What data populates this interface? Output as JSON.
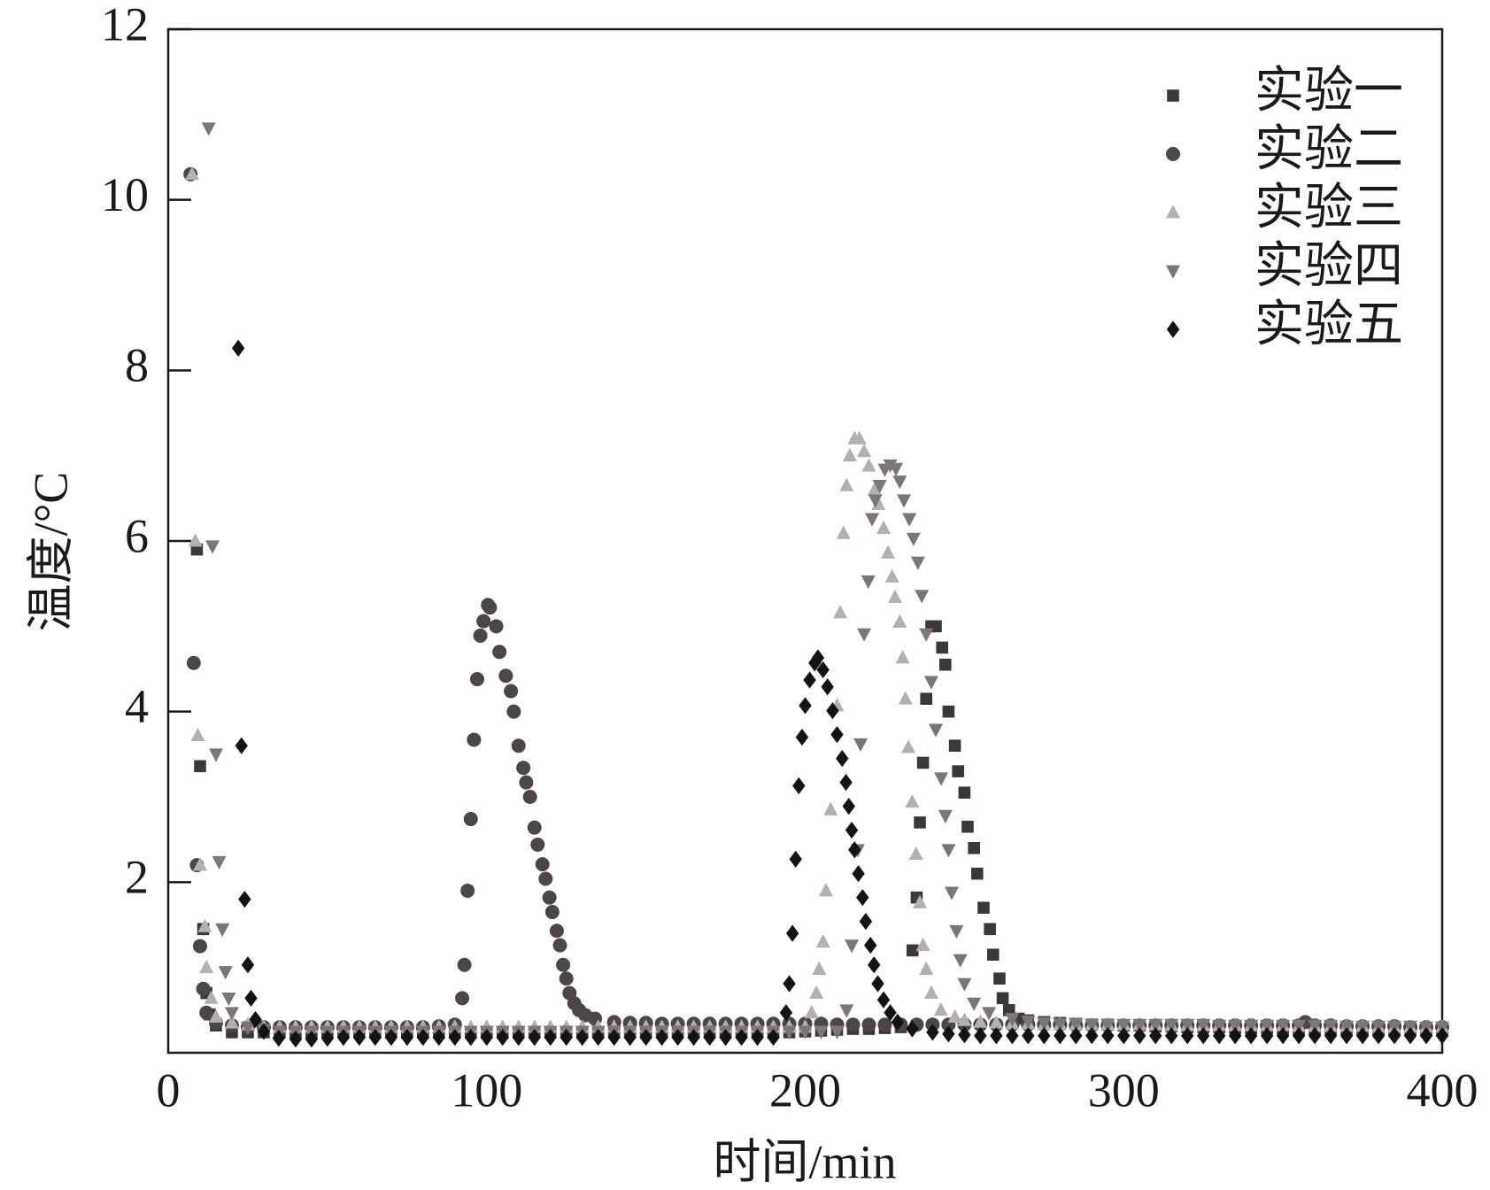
{
  "chart_data": {
    "type": "scatter",
    "x_label": "时间/min",
    "y_label": "温度/°C",
    "xlim": [
      0,
      400
    ],
    "ylim": [
      0,
      12
    ],
    "xticks": [
      0,
      100,
      200,
      300,
      400
    ],
    "yticks": [
      2,
      4,
      6,
      8,
      10,
      12
    ],
    "legend": "upper right",
    "series": [
      {
        "name": "实验一",
        "color": "#3d3838",
        "marker": "square",
        "x": [
          9,
          10,
          11,
          12,
          13,
          15,
          20,
          25,
          30,
          35,
          40,
          45,
          50,
          55,
          60,
          65,
          70,
          75,
          80,
          85,
          90,
          95,
          100,
          105,
          110,
          115,
          120,
          125,
          130,
          135,
          140,
          145,
          150,
          155,
          160,
          165,
          170,
          175,
          180,
          185,
          190,
          195,
          200,
          205,
          210,
          215,
          220,
          225,
          230,
          233.7,
          235,
          236,
          237,
          238,
          239.6,
          241,
          243,
          244,
          245,
          247,
          248,
          250,
          251,
          253,
          254,
          256,
          258,
          259,
          261,
          262,
          264,
          267,
          270,
          275,
          280,
          285,
          290,
          295,
          300,
          305,
          310,
          315,
          320,
          325,
          330,
          335,
          340,
          345,
          350,
          355,
          360,
          365,
          370,
          375,
          380,
          385,
          390,
          395,
          400
        ],
        "values": [
          5.9,
          3.36,
          1.45,
          0.7,
          0.45,
          0.32,
          0.24,
          0.24,
          0.24,
          0.24,
          0.24,
          0.24,
          0.24,
          0.24,
          0.24,
          0.24,
          0.24,
          0.24,
          0.24,
          0.24,
          0.24,
          0.24,
          0.24,
          0.24,
          0.24,
          0.24,
          0.24,
          0.24,
          0.24,
          0.24,
          0.24,
          0.24,
          0.24,
          0.24,
          0.24,
          0.24,
          0.24,
          0.24,
          0.24,
          0.24,
          0.24,
          0.24,
          0.25,
          0.26,
          0.27,
          0.28,
          0.28,
          0.29,
          0.3,
          1.2,
          1.82,
          2.7,
          3.4,
          4.15,
          5.0,
          5.0,
          4.75,
          4.55,
          4.0,
          3.6,
          3.3,
          3.05,
          2.65,
          2.4,
          2.1,
          1.7,
          1.45,
          1.15,
          0.87,
          0.64,
          0.5,
          0.4,
          0.38,
          0.36,
          0.35,
          0.34,
          0.33,
          0.33,
          0.32,
          0.32,
          0.31,
          0.31,
          0.3,
          0.3,
          0.3,
          0.29,
          0.29,
          0.29,
          0.28,
          0.28,
          0.28,
          0.28,
          0.27,
          0.27,
          0.27,
          0.27,
          0.27,
          0.26,
          0.26
        ]
      },
      {
        "name": "实验二",
        "color": "#4d4646",
        "marker": "circle",
        "x": [
          7,
          8,
          9,
          10,
          11,
          12,
          15,
          20,
          25,
          30,
          35,
          40,
          45,
          50,
          55,
          60,
          65,
          70,
          75,
          80,
          85,
          90,
          92.3,
          93,
          94,
          95,
          96,
          97,
          98,
          99,
          100.4,
          101,
          103,
          104,
          106,
          107.6,
          108.5,
          110,
          111.5,
          112.4,
          113.6,
          115,
          116,
          117.5,
          118.5,
          119.7,
          120.6,
          122,
          123,
          124,
          125,
          126,
          127.5,
          129,
          131,
          134,
          140,
          145,
          150,
          155,
          160,
          165,
          170,
          175,
          180,
          185,
          190,
          195,
          200,
          205,
          210,
          215,
          220,
          225,
          230,
          235,
          240,
          245,
          250,
          255,
          260,
          265,
          270,
          275,
          280,
          285,
          290,
          295,
          300,
          305,
          310,
          315,
          320,
          325,
          330,
          335,
          340,
          345,
          350,
          355,
          357,
          360,
          365,
          370,
          375,
          380,
          385,
          390,
          395,
          400
        ],
        "values": [
          10.3,
          4.57,
          2.2,
          1.25,
          0.75,
          0.47,
          0.35,
          0.32,
          0.3,
          0.3,
          0.3,
          0.3,
          0.3,
          0.3,
          0.3,
          0.3,
          0.3,
          0.3,
          0.3,
          0.3,
          0.31,
          0.33,
          0.64,
          1.03,
          1.9,
          2.74,
          3.67,
          4.38,
          4.89,
          5.06,
          5.25,
          5.22,
          5.0,
          4.7,
          4.42,
          4.24,
          4.0,
          3.6,
          3.34,
          3.17,
          3.0,
          2.64,
          2.44,
          2.21,
          2.04,
          1.82,
          1.65,
          1.43,
          1.26,
          1.03,
          0.87,
          0.7,
          0.58,
          0.5,
          0.44,
          0.4,
          0.36,
          0.35,
          0.35,
          0.34,
          0.34,
          0.34,
          0.34,
          0.34,
          0.34,
          0.34,
          0.34,
          0.34,
          0.34,
          0.34,
          0.33,
          0.33,
          0.33,
          0.33,
          0.33,
          0.33,
          0.33,
          0.33,
          0.33,
          0.33,
          0.33,
          0.33,
          0.33,
          0.33,
          0.33,
          0.32,
          0.32,
          0.32,
          0.32,
          0.32,
          0.32,
          0.32,
          0.32,
          0.32,
          0.32,
          0.32,
          0.32,
          0.32,
          0.32,
          0.32,
          0.36,
          0.32,
          0.32,
          0.31,
          0.31,
          0.31,
          0.31,
          0.3,
          0.3,
          0.3
        ]
      },
      {
        "name": "实验三",
        "color": "#b5b0b0",
        "marker": "triangle-up",
        "x": [
          7.5,
          8.5,
          9.3,
          10,
          11.5,
          12,
          13.5,
          15,
          20,
          25,
          30,
          35,
          40,
          45,
          50,
          55,
          60,
          65,
          70,
          75,
          80,
          85,
          90,
          95,
          100,
          105,
          110,
          115,
          120,
          125,
          130,
          135,
          140,
          145,
          150,
          155,
          160,
          165,
          170,
          175,
          180,
          185,
          190,
          195,
          200,
          202,
          203.5,
          204.4,
          205.6,
          206.5,
          208,
          210,
          211,
          212,
          213,
          214,
          215.5,
          217,
          218.5,
          220,
          221.8,
          223,
          224.6,
          226,
          227.3,
          228.2,
          229.7,
          230.6,
          231.5,
          232.4,
          233.6,
          234.8,
          236,
          237,
          238,
          239.6,
          242.6,
          247,
          250,
          255,
          260,
          265,
          270,
          275,
          280,
          285,
          290,
          295,
          300,
          305,
          310,
          315,
          320,
          325,
          330,
          335,
          340,
          345,
          350,
          355,
          360,
          365,
          370,
          375,
          380,
          385,
          390,
          395,
          400
        ],
        "values": [
          10.3,
          6.0,
          3.72,
          2.2,
          1.48,
          1.0,
          0.64,
          0.42,
          0.35,
          0.33,
          0.3,
          0.3,
          0.3,
          0.3,
          0.3,
          0.3,
          0.3,
          0.3,
          0.3,
          0.3,
          0.3,
          0.3,
          0.3,
          0.3,
          0.3,
          0.3,
          0.3,
          0.3,
          0.3,
          0.3,
          0.3,
          0.3,
          0.3,
          0.3,
          0.3,
          0.3,
          0.3,
          0.3,
          0.3,
          0.3,
          0.3,
          0.3,
          0.3,
          0.3,
          0.3,
          0.47,
          0.7,
          0.98,
          1.3,
          1.9,
          2.85,
          4.07,
          5.16,
          6.09,
          6.65,
          7.0,
          7.2,
          7.2,
          7.05,
          6.88,
          6.6,
          6.43,
          6.15,
          5.86,
          5.58,
          5.34,
          5.05,
          4.63,
          4.15,
          3.58,
          2.94,
          2.33,
          1.76,
          1.26,
          0.98,
          0.7,
          0.5,
          0.42,
          0.38,
          0.36,
          0.35,
          0.34,
          0.34,
          0.33,
          0.33,
          0.33,
          0.33,
          0.33,
          0.33,
          0.33,
          0.33,
          0.32,
          0.32,
          0.32,
          0.32,
          0.32,
          0.32,
          0.32,
          0.32,
          0.31,
          0.31,
          0.31,
          0.31,
          0.31,
          0.3,
          0.3,
          0.3,
          0.3,
          0.3
        ]
      },
      {
        "name": "实验四",
        "color": "#7d7676",
        "marker": "triangle-down",
        "x": [
          12.7,
          13.9,
          15,
          16,
          17,
          18,
          19,
          20,
          25,
          30,
          35,
          40,
          45,
          50,
          55,
          60,
          65,
          70,
          75,
          80,
          85,
          90,
          95,
          100,
          105,
          110,
          115,
          120,
          125,
          130,
          135,
          140,
          145,
          150,
          155,
          160,
          165,
          170,
          175,
          180,
          185,
          190,
          195,
          200,
          205,
          210,
          213,
          214.6,
          216.5,
          217.4,
          218.5,
          219.8,
          221,
          222,
          223.4,
          225,
          226.7,
          228.5,
          229.7,
          231,
          232.7,
          234,
          235.4,
          236.6,
          238,
          239.6,
          241,
          242.7,
          244,
          245,
          246,
          247.5,
          248.7,
          250,
          253,
          257.7,
          265,
          270,
          275,
          280,
          285,
          290,
          295,
          300,
          305,
          310,
          315,
          320,
          325,
          330,
          335,
          340,
          345,
          350,
          355,
          360,
          365,
          370,
          375,
          380,
          385,
          390,
          395,
          400
        ],
        "values": [
          10.84,
          5.94,
          3.5,
          2.24,
          1.45,
          0.95,
          0.64,
          0.47,
          0.3,
          0.27,
          0.25,
          0.25,
          0.25,
          0.25,
          0.25,
          0.25,
          0.25,
          0.25,
          0.25,
          0.25,
          0.25,
          0.25,
          0.25,
          0.25,
          0.25,
          0.25,
          0.25,
          0.25,
          0.25,
          0.25,
          0.25,
          0.25,
          0.25,
          0.25,
          0.25,
          0.25,
          0.25,
          0.25,
          0.25,
          0.25,
          0.25,
          0.25,
          0.25,
          0.25,
          0.25,
          0.25,
          0.5,
          1.26,
          2.38,
          3.62,
          4.91,
          5.53,
          6.26,
          6.48,
          6.65,
          6.84,
          6.89,
          6.85,
          6.7,
          6.48,
          6.26,
          6.03,
          5.75,
          5.36,
          4.91,
          4.35,
          3.79,
          3.22,
          2.78,
          2.38,
          1.88,
          1.43,
          1.09,
          0.81,
          0.58,
          0.47,
          0.4,
          0.37,
          0.35,
          0.34,
          0.34,
          0.33,
          0.33,
          0.33,
          0.33,
          0.33,
          0.33,
          0.33,
          0.33,
          0.32,
          0.32,
          0.32,
          0.32,
          0.32,
          0.32,
          0.32,
          0.32,
          0.31,
          0.31,
          0.31,
          0.31,
          0.31,
          0.3,
          0.3
        ]
      },
      {
        "name": "实验五",
        "color": "#141212",
        "marker": "diamond",
        "x": [
          22,
          23,
          24,
          25,
          26,
          27.4,
          30,
          34.7,
          40,
          45,
          50,
          55,
          60,
          65,
          70,
          75,
          80,
          85,
          90,
          95,
          100,
          105,
          110,
          115,
          120,
          125,
          130,
          135,
          140,
          145,
          150,
          155,
          160,
          165,
          170,
          175,
          180,
          185,
          190,
          194,
          195,
          196,
          197,
          198,
          199,
          200,
          201.4,
          203,
          204,
          205.6,
          207,
          208.6,
          210,
          211.6,
          212.8,
          213.7,
          214.6,
          215.5,
          216.7,
          218,
          219,
          220.5,
          221.6,
          222.8,
          224.6,
          226.7,
          229,
          233.6,
          240,
          245,
          250,
          255,
          260,
          265,
          270,
          275,
          280,
          285,
          290,
          295,
          300,
          305,
          310,
          315,
          320,
          325,
          330,
          335,
          340,
          345,
          350,
          355,
          360,
          365,
          370,
          375,
          380,
          385,
          390,
          395,
          400
        ],
        "values": [
          8.26,
          3.6,
          1.8,
          1.03,
          0.64,
          0.39,
          0.25,
          0.17,
          0.16,
          0.16,
          0.17,
          0.18,
          0.18,
          0.18,
          0.18,
          0.18,
          0.18,
          0.18,
          0.18,
          0.18,
          0.18,
          0.18,
          0.18,
          0.18,
          0.18,
          0.18,
          0.18,
          0.18,
          0.18,
          0.18,
          0.18,
          0.18,
          0.18,
          0.18,
          0.18,
          0.18,
          0.18,
          0.18,
          0.18,
          0.47,
          0.81,
          1.4,
          2.27,
          3.13,
          3.7,
          4.07,
          4.37,
          4.57,
          4.63,
          4.49,
          4.29,
          4.01,
          3.73,
          3.45,
          3.17,
          2.89,
          2.61,
          2.38,
          2.1,
          1.82,
          1.54,
          1.26,
          1.03,
          0.81,
          0.62,
          0.47,
          0.36,
          0.28,
          0.24,
          0.22,
          0.21,
          0.2,
          0.2,
          0.2,
          0.2,
          0.2,
          0.2,
          0.2,
          0.2,
          0.2,
          0.2,
          0.2,
          0.2,
          0.2,
          0.2,
          0.2,
          0.2,
          0.2,
          0.2,
          0.2,
          0.2,
          0.2,
          0.2,
          0.2,
          0.2,
          0.2,
          0.2,
          0.2,
          0.2,
          0.2,
          0.2
        ]
      }
    ]
  }
}
